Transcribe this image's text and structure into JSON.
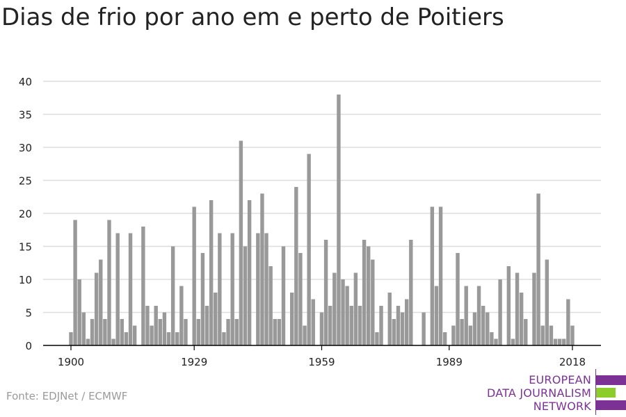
{
  "title": "Dias de frio por ano em e perto de Poitiers",
  "source": "Fonte: EDJNet / ECMWF",
  "logo": {
    "lines": [
      "EUROPEAN",
      "DATA JOURNALISM",
      "NETWORK"
    ]
  },
  "colors": {
    "bar": "#999999",
    "grid": "#dddddd",
    "axis": "#000000",
    "text": "#222222",
    "logo_purple": "#7b3294",
    "logo_green": "#8ccc2b"
  },
  "chart_data": {
    "type": "bar",
    "x_ticks": [
      1900,
      1929,
      1959,
      1989,
      2018
    ],
    "ylim": [
      0,
      40
    ],
    "y_ticks": [
      0,
      5,
      10,
      15,
      20,
      25,
      30,
      35,
      40
    ],
    "grid": true,
    "series": [
      {
        "x": [
          1900,
          1901,
          1902,
          1903,
          1904,
          1905,
          1906,
          1907,
          1908,
          1909,
          1910,
          1911,
          1912,
          1913,
          1914,
          1915,
          1916,
          1917,
          1918,
          1919,
          1920,
          1921,
          1922,
          1923,
          1924,
          1925,
          1926,
          1927,
          1928,
          1929,
          1930,
          1931,
          1932,
          1933,
          1934,
          1935,
          1936,
          1937,
          1938,
          1939,
          1940,
          1941,
          1942,
          1943,
          1944,
          1945,
          1946,
          1947,
          1948,
          1949,
          1950,
          1951,
          1952,
          1953,
          1954,
          1955,
          1956,
          1957,
          1958,
          1959,
          1960,
          1961,
          1962,
          1963,
          1964,
          1965,
          1966,
          1967,
          1968,
          1969,
          1970,
          1971,
          1972,
          1973,
          1974,
          1975,
          1976,
          1977,
          1978,
          1979,
          1980,
          1981,
          1982,
          1983,
          1984,
          1985,
          1986,
          1987,
          1988,
          1989,
          1990,
          1991,
          1992,
          1993,
          1994,
          1995,
          1996,
          1997,
          1998,
          1999,
          2000,
          2001,
          2002,
          2003,
          2004,
          2005,
          2006,
          2007,
          2008,
          2009,
          2010,
          2011,
          2012,
          2013,
          2014,
          2015,
          2016,
          2017,
          2018
        ],
        "values": [
          2,
          19,
          10,
          5,
          1,
          4,
          11,
          13,
          4,
          19,
          1,
          17,
          4,
          2,
          17,
          3,
          0,
          18,
          6,
          3,
          6,
          4,
          5,
          2,
          15,
          2,
          9,
          4,
          0,
          21,
          4,
          14,
          6,
          22,
          8,
          17,
          2,
          4,
          17,
          4,
          31,
          15,
          22,
          0,
          17,
          23,
          17,
          12,
          4,
          4,
          15,
          0,
          8,
          24,
          14,
          3,
          29,
          7,
          0,
          5,
          16,
          6,
          11,
          38,
          10,
          9,
          6,
          11,
          6,
          16,
          15,
          13,
          2,
          6,
          0,
          8,
          4,
          6,
          5,
          7,
          16,
          0,
          0,
          5,
          0,
          21,
          9,
          21,
          2,
          0,
          3,
          14,
          4,
          9,
          3,
          5,
          9,
          6,
          5,
          2,
          1,
          10,
          0,
          12,
          1,
          11,
          8,
          4,
          0,
          11,
          23,
          3,
          13,
          3,
          1,
          1,
          1,
          7,
          3
        ]
      }
    ]
  }
}
